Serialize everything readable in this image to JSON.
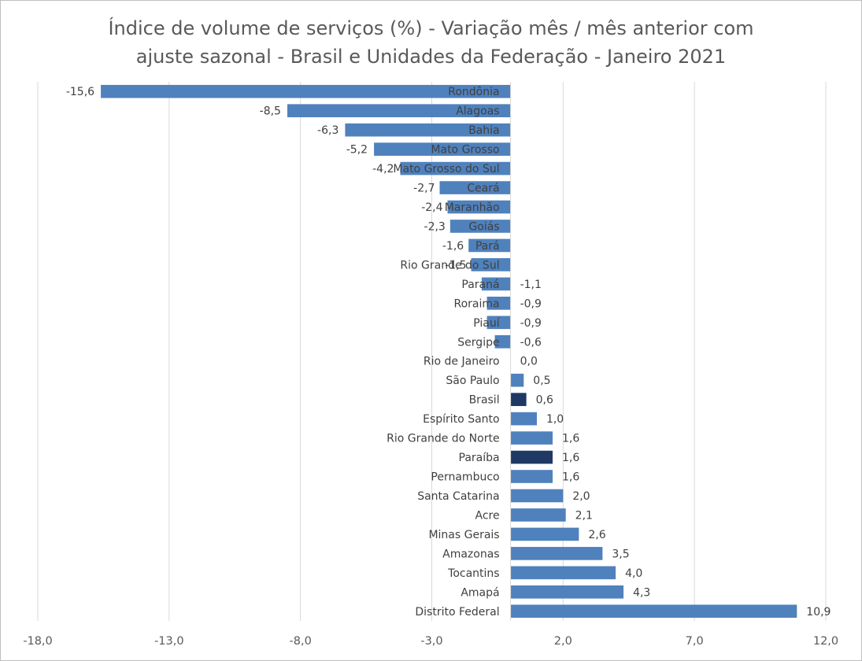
{
  "chart_data": {
    "type": "bar",
    "orientation": "horizontal",
    "title_lines": [
      "Índice de volume de serviços (%) - Variação mês / mês anterior com",
      "ajuste sazonal - Brasil e Unidades da Federação - Janeiro 2021"
    ],
    "xlabel": "",
    "ylabel": "",
    "xlim": [
      -18,
      12
    ],
    "x_ticks": [
      -18,
      -13,
      -8,
      -3,
      2,
      7,
      12
    ],
    "x_tick_labels": [
      "-18,0",
      "-13,0",
      "-8,0",
      "-3,0",
      "2,0",
      "7,0",
      "12,0"
    ],
    "grid": "vertical",
    "legend": "none",
    "categories": [
      "Rondônia",
      "Alagoas",
      "Bahia",
      "Mato Grosso",
      "Mato Grosso do Sul",
      "Ceará",
      "Maranhão",
      "Goiás",
      "Pará",
      "Rio Grande do Sul",
      "Paraná",
      "Roraima",
      "Piauí",
      "Sergipe",
      "Rio de Janeiro",
      "São Paulo",
      "Brasil",
      "Espírito Santo",
      "Rio Grande do Norte",
      "Paraíba",
      "Pernambuco",
      "Santa Catarina",
      "Acre",
      "Minas Gerais",
      "Amazonas",
      "Tocantins",
      "Amapá",
      "Distrito Federal"
    ],
    "values": [
      -15.6,
      -8.5,
      -6.3,
      -5.2,
      -4.2,
      -2.7,
      -2.4,
      -2.3,
      -1.6,
      -1.5,
      -1.1,
      -0.9,
      -0.9,
      -0.6,
      0.0,
      0.5,
      0.6,
      1.0,
      1.6,
      1.6,
      1.6,
      2.0,
      2.1,
      2.6,
      3.5,
      4.0,
      4.3,
      10.9
    ],
    "value_labels": [
      "-15,6",
      "-8,5",
      "-6,3",
      "-5,2",
      "-4,2",
      "-2,7",
      "-2,4",
      "-2,3",
      "-1,6",
      "-1,5",
      "-1,1",
      "-0,9",
      "-0,9",
      "-0,6",
      "0,0",
      "0,5",
      "0,6",
      "1,0",
      "1,6",
      "1,6",
      "1,6",
      "2,0",
      "2,1",
      "2,6",
      "3,5",
      "4,0",
      "4,3",
      "10,9"
    ],
    "bar_color": "#4f81bd",
    "highlight_colors": {
      "Brasil": "#1f3864",
      "Paraíba": "#1f3864"
    },
    "grid_color": "#d9d9d9",
    "text_color": "#404040"
  }
}
